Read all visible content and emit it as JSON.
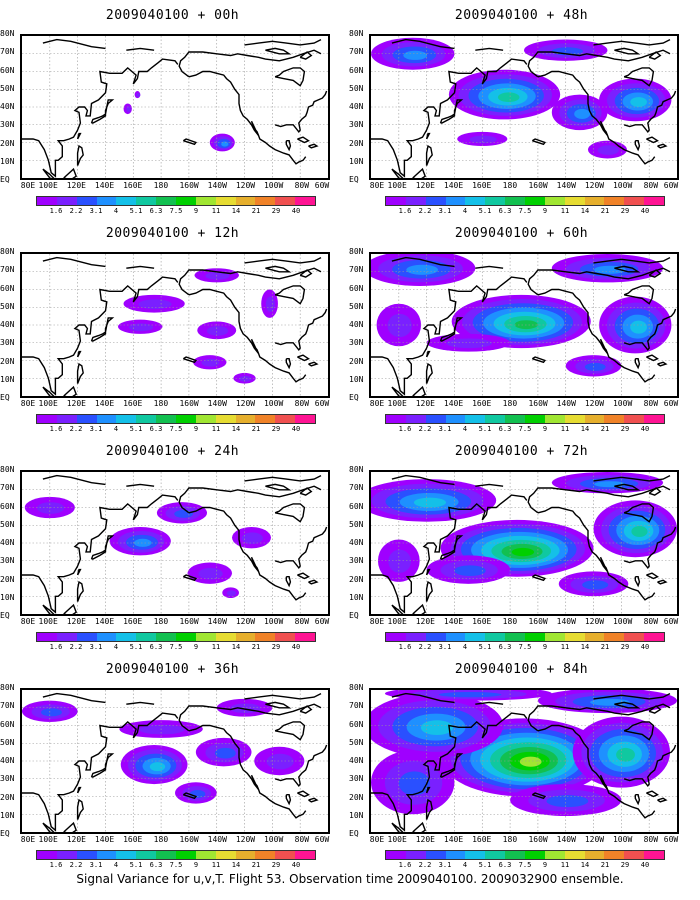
{
  "panels": [
    {
      "title": "2009040100 + 00h",
      "col": 0,
      "row": 0,
      "intensity": 0
    },
    {
      "title": "2009040100 + 12h",
      "col": 0,
      "row": 1,
      "intensity": 1
    },
    {
      "title": "2009040100 + 24h",
      "col": 0,
      "row": 2,
      "intensity": 2
    },
    {
      "title": "2009040100 + 36h",
      "col": 0,
      "row": 3,
      "intensity": 3
    },
    {
      "title": "2009040100 + 48h",
      "col": 1,
      "row": 0,
      "intensity": 4
    },
    {
      "title": "2009040100 + 60h",
      "col": 1,
      "row": 1,
      "intensity": 5
    },
    {
      "title": "2009040100 + 72h",
      "col": 1,
      "row": 2,
      "intensity": 6
    },
    {
      "title": "2009040100 + 84h",
      "col": 1,
      "row": 3,
      "intensity": 7
    }
  ],
  "lat_labels": [
    "80N",
    "70N",
    "60N",
    "50N",
    "40N",
    "30N",
    "20N",
    "10N",
    "EQ"
  ],
  "lon_labels": [
    "80E",
    "100E",
    "120E",
    "140E",
    "160E",
    "180",
    "160W",
    "140W",
    "120W",
    "100W",
    "80W",
    "60W"
  ],
  "colorbar": {
    "labels": [
      "1.6",
      "2.2",
      "3.1",
      "4",
      "5.1",
      "6.3",
      "7.5",
      "9",
      "11",
      "14",
      "21",
      "29",
      "40"
    ],
    "colors": [
      "#9f00ff",
      "#7a20ff",
      "#2a50ff",
      "#1e90ff",
      "#14c0e8",
      "#10c8a0",
      "#12c050",
      "#00d000",
      "#a0e632",
      "#e6dc32",
      "#e6af2d",
      "#f08228",
      "#f05050",
      "#ff1493"
    ]
  },
  "footer": "Signal Variance for u,v,T. Flight 53. Observation time 2009040100. 2009032900 ensemble."
}
